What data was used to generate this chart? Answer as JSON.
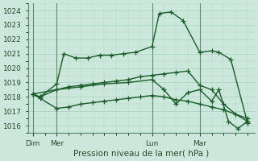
{
  "title": "Pression niveau de la mer( hPa )",
  "bg_color": "#cce8dc",
  "grid_color": "#b0d4c4",
  "line_color": "#1a5c28",
  "ylim": [
    1015.5,
    1024.5
  ],
  "yticks": [
    1016,
    1017,
    1018,
    1019,
    1020,
    1021,
    1022,
    1023,
    1024
  ],
  "x_tick_labels": [
    "Dim",
    "Mer",
    "Lun",
    "Mar"
  ],
  "x_tick_positions": [
    0,
    1,
    5,
    7
  ],
  "vline_positions": [
    0,
    1,
    5,
    7
  ],
  "series": [
    {
      "x": [
        0,
        0.3,
        1.0,
        1.3,
        1.8,
        2.3,
        2.8,
        3.3,
        3.8,
        4.3,
        5.0,
        5.3,
        5.8,
        6.3,
        7.0,
        7.5,
        7.8,
        8.3,
        9.0
      ],
      "y": [
        1018.2,
        1018.0,
        1018.9,
        1021.0,
        1020.7,
        1020.7,
        1020.9,
        1020.9,
        1021.0,
        1021.1,
        1021.5,
        1023.8,
        1023.9,
        1023.3,
        1021.1,
        1021.2,
        1021.1,
        1020.6,
        1016.2
      ]
    },
    {
      "x": [
        0,
        0.3,
        1.0,
        1.5,
        2.0,
        2.5,
        3.0,
        3.5,
        4.0,
        4.5,
        5.0,
        5.5,
        6.0,
        6.5,
        7.0,
        7.5,
        8.0,
        8.5,
        9.0
      ],
      "y": [
        1018.2,
        1018.0,
        1018.5,
        1018.7,
        1018.8,
        1018.9,
        1019.0,
        1019.1,
        1019.2,
        1019.4,
        1019.5,
        1019.6,
        1019.7,
        1019.8,
        1018.8,
        1018.5,
        1017.5,
        1016.8,
        1016.3
      ]
    },
    {
      "x": [
        0,
        0.3,
        1.0,
        1.5,
        2.0,
        2.5,
        3.0,
        3.5,
        4.0,
        4.5,
        5.0,
        5.5,
        6.0,
        6.5,
        7.0,
        7.5,
        8.0,
        9.0
      ],
      "y": [
        1018.2,
        1017.9,
        1017.2,
        1017.3,
        1017.5,
        1017.6,
        1017.7,
        1017.8,
        1017.9,
        1018.0,
        1018.1,
        1018.0,
        1017.8,
        1017.7,
        1017.5,
        1017.3,
        1017.1,
        1016.5
      ]
    },
    {
      "x": [
        0,
        1.0,
        2.0,
        3.0,
        4.0,
        5.0,
        5.5,
        6.0,
        6.5,
        7.0,
        7.5,
        7.8,
        8.2,
        8.6,
        9.0
      ],
      "y": [
        1018.2,
        1018.5,
        1018.7,
        1018.9,
        1019.0,
        1019.2,
        1018.5,
        1017.5,
        1018.3,
        1018.5,
        1017.7,
        1018.5,
        1016.3,
        1015.8,
        1016.3
      ]
    }
  ],
  "marker": "+",
  "markersize": 4,
  "linewidth": 1.0,
  "tick_fontsize": 6.5,
  "title_fontsize": 7.5
}
